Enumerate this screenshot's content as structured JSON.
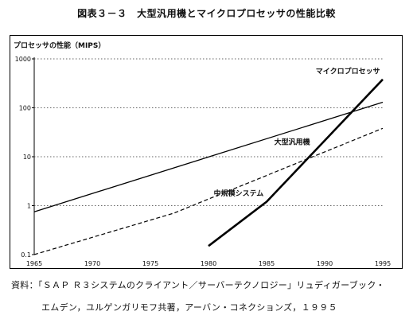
{
  "figure": {
    "title": "図表３－３　大型汎用機とマイクロプロセッサの性能比較"
  },
  "source": {
    "line1": "資料：「ＳＡＰ Ｒ３システムのクライアント／サーバーテクノロジー」リュディガーブック・",
    "line2": "エムデン，ユルゲンガリモフ共著，アーバン・コネクションズ，１９９５"
  },
  "chart_data": {
    "type": "line",
    "title": "",
    "ylabel": "プロセッサの性能（MIPS）",
    "xlabel": "",
    "yscale": "log",
    "xlim": [
      1965,
      1995
    ],
    "ylim": [
      0.1,
      1000
    ],
    "x_ticks": [
      "1965",
      "1970",
      "1975",
      "1980",
      "1985",
      "1990",
      "1995"
    ],
    "y_ticks": [
      "1000",
      "100",
      "10",
      "1",
      "0.1"
    ],
    "grid": "horizontal-dotted",
    "legend": "inline-labels",
    "series": [
      {
        "name": "大型汎用機",
        "style": "solid",
        "color": "#000000",
        "points": [
          [
            1965,
            0.75
          ],
          [
            1995,
            130
          ]
        ]
      },
      {
        "name": "中規模システム",
        "style": "dashed",
        "color": "#000000",
        "points": [
          [
            1965,
            0.1
          ],
          [
            1977,
            0.7
          ],
          [
            1995,
            38
          ]
        ]
      },
      {
        "name": "マイクロプロセッサ",
        "style": "solid-bold",
        "color": "#000000",
        "points": [
          [
            1980,
            0.15
          ],
          [
            1985,
            1.2
          ],
          [
            1989,
            12
          ],
          [
            1995,
            380
          ]
        ]
      }
    ]
  }
}
